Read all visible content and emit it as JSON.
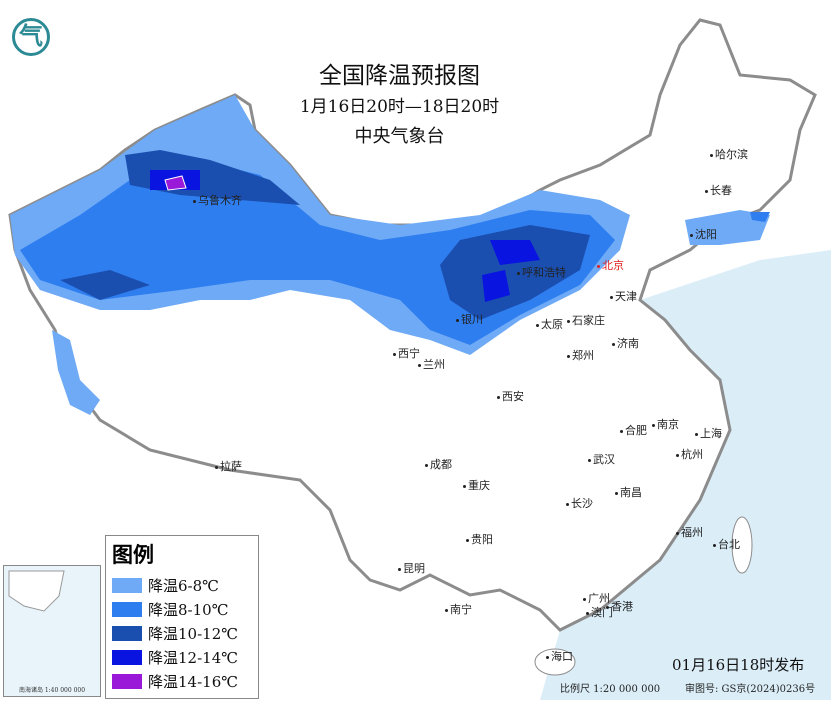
{
  "header": {
    "title": "全国降温预报图",
    "period": "1月16日20时—18日20时",
    "issuer": "中央气象台",
    "logo_text": "气"
  },
  "legend": {
    "title": "图例",
    "items": [
      {
        "label": "降温6-8℃",
        "color": "#6eaaf5"
      },
      {
        "label": "降温8-10℃",
        "color": "#2f7ef0"
      },
      {
        "label": "降温10-12℃",
        "color": "#1a4fb0"
      },
      {
        "label": "降温12-14℃",
        "color": "#0a14e0"
      },
      {
        "label": "降温14-16℃",
        "color": "#9a18d8"
      }
    ]
  },
  "cities": [
    "乌鲁木齐",
    "哈尔滨",
    "长春",
    "沈阳",
    "呼和浩特",
    "北京",
    "天津",
    "银川",
    "太原",
    "石家庄",
    "西宁",
    "兰州",
    "济南",
    "西安",
    "郑州",
    "合肥",
    "南京",
    "上海",
    "拉萨",
    "成都",
    "武汉",
    "杭州",
    "重庆",
    "南昌",
    "长沙",
    "贵阳",
    "福州",
    "台北",
    "昆明",
    "广州",
    "南宁",
    "澳门",
    "香港",
    "海口"
  ],
  "footer": {
    "issued": "01月16日18时发布",
    "scale": "比例尺 1:20 000 000",
    "review": "审图号: GS京(2024)0236号",
    "inset_caption": "南海诸岛 1:40 000 000"
  },
  "colors": {
    "sea": "#dbeef8",
    "land": "#ffffff",
    "border": "#8c8c8c"
  }
}
